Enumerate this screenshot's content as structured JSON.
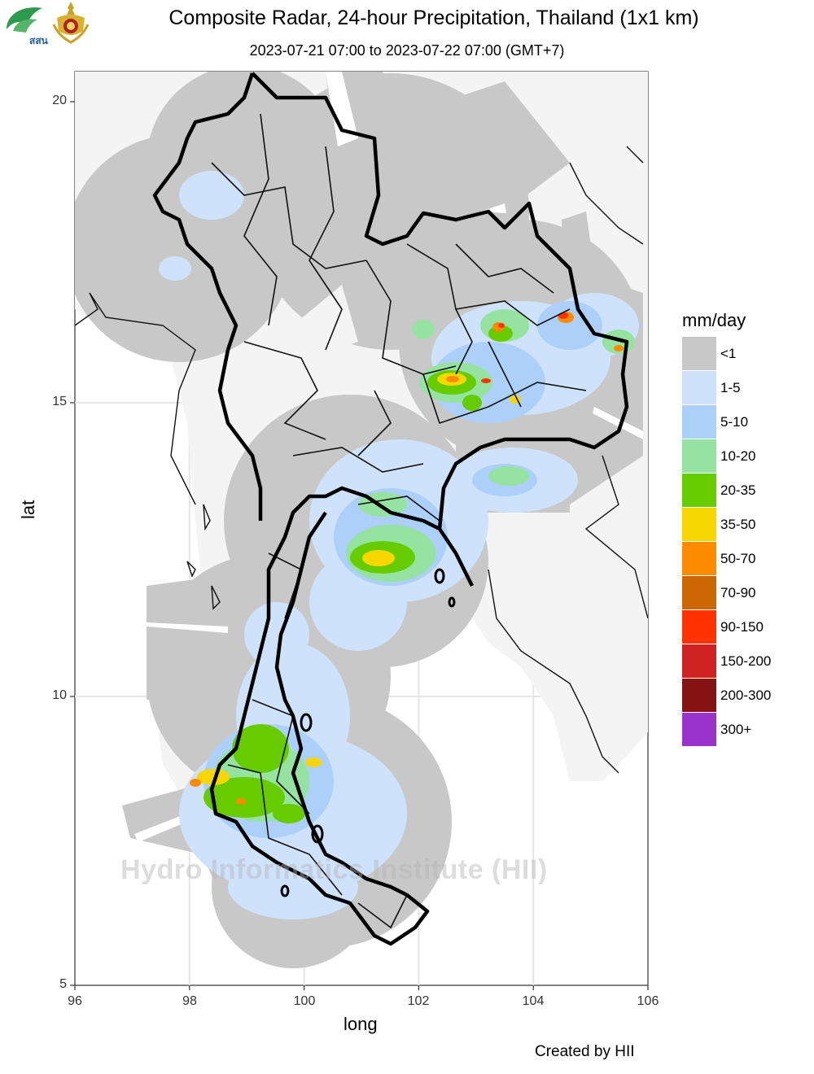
{
  "header": {
    "title": "Composite Radar, 24-hour Precipitation, Thailand (1x1 km)",
    "subtitle": "2023-07-21 07:00 to 2023-07-22 07:00 (GMT+7)",
    "logo_left_text": "สสน"
  },
  "axes": {
    "xlabel": "long",
    "ylabel": "lat",
    "xticks": [
      "96",
      "98",
      "100",
      "102",
      "104",
      "106"
    ],
    "yticks": [
      "5",
      "10",
      "15",
      "20"
    ],
    "xlim": [
      96,
      106
    ],
    "ylim": [
      5,
      20.5
    ],
    "grid": true
  },
  "legend": {
    "title": "mm/day",
    "items": [
      {
        "label": "<1",
        "color": "#c8c8c8"
      },
      {
        "label": "1-5",
        "color": "#cfe2fc"
      },
      {
        "label": "5-10",
        "color": "#acd0fa"
      },
      {
        "label": "10-20",
        "color": "#96e2a0"
      },
      {
        "label": "20-35",
        "color": "#66cc00"
      },
      {
        "label": "35-50",
        "color": "#f8d600"
      },
      {
        "label": "50-70",
        "color": "#ff8c00"
      },
      {
        "label": "70-90",
        "color": "#cc6600"
      },
      {
        "label": "90-150",
        "color": "#ff3300"
      },
      {
        "label": "150-200",
        "color": "#cc2222"
      },
      {
        "label": "200-300",
        "color": "#861414"
      },
      {
        "label": "300+",
        "color": "#9933cc"
      }
    ]
  },
  "watermark": "Hydro Informatics Institute (HII)",
  "credit": "Created by HII"
}
